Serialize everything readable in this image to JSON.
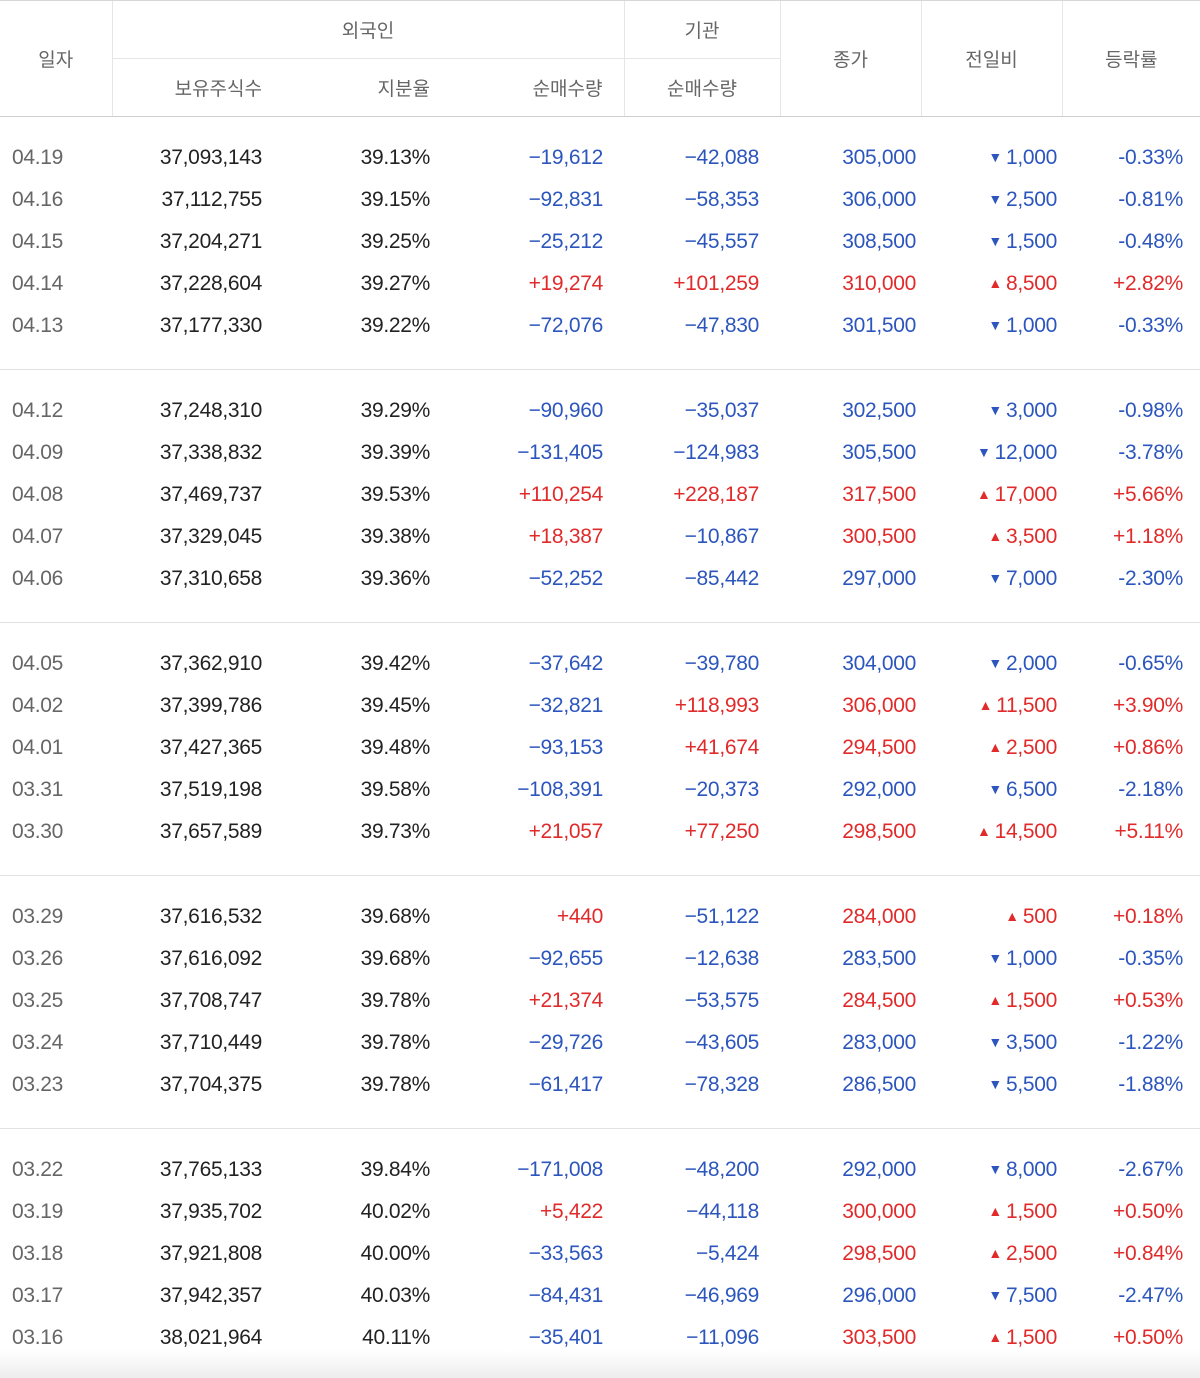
{
  "header": {
    "date": "일자",
    "foreign": "외국인",
    "institution": "기관",
    "close": "종가",
    "change": "전일비",
    "rate": "등락률",
    "holdings": "보유주식수",
    "share_ratio": "지분율",
    "foreign_net": "순매수량",
    "inst_net": "순매수량"
  },
  "colors": {
    "up": "#e12b2b",
    "down": "#2c56bd"
  },
  "icons": {
    "up": "triangle-up-icon",
    "down": "triangle-down-icon"
  },
  "groups": [
    [
      {
        "date": "04.19",
        "hold": "37,093,143",
        "ratio": "39.13%",
        "fnet": "−19,612",
        "inet": "−42,088",
        "close": "305,000",
        "chg": "1,000",
        "rate": "-0.33%",
        "fdir": "down",
        "idir": "down",
        "dir": "down"
      },
      {
        "date": "04.16",
        "hold": "37,112,755",
        "ratio": "39.15%",
        "fnet": "−92,831",
        "inet": "−58,353",
        "close": "306,000",
        "chg": "2,500",
        "rate": "-0.81%",
        "fdir": "down",
        "idir": "down",
        "dir": "down"
      },
      {
        "date": "04.15",
        "hold": "37,204,271",
        "ratio": "39.25%",
        "fnet": "−25,212",
        "inet": "−45,557",
        "close": "308,500",
        "chg": "1,500",
        "rate": "-0.48%",
        "fdir": "down",
        "idir": "down",
        "dir": "down"
      },
      {
        "date": "04.14",
        "hold": "37,228,604",
        "ratio": "39.27%",
        "fnet": "+19,274",
        "inet": "+101,259",
        "close": "310,000",
        "chg": "8,500",
        "rate": "+2.82%",
        "fdir": "up",
        "idir": "up",
        "dir": "up"
      },
      {
        "date": "04.13",
        "hold": "37,177,330",
        "ratio": "39.22%",
        "fnet": "−72,076",
        "inet": "−47,830",
        "close": "301,500",
        "chg": "1,000",
        "rate": "-0.33%",
        "fdir": "down",
        "idir": "down",
        "dir": "down"
      }
    ],
    [
      {
        "date": "04.12",
        "hold": "37,248,310",
        "ratio": "39.29%",
        "fnet": "−90,960",
        "inet": "−35,037",
        "close": "302,500",
        "chg": "3,000",
        "rate": "-0.98%",
        "fdir": "down",
        "idir": "down",
        "dir": "down"
      },
      {
        "date": "04.09",
        "hold": "37,338,832",
        "ratio": "39.39%",
        "fnet": "−131,405",
        "inet": "−124,983",
        "close": "305,500",
        "chg": "12,000",
        "rate": "-3.78%",
        "fdir": "down",
        "idir": "down",
        "dir": "down"
      },
      {
        "date": "04.08",
        "hold": "37,469,737",
        "ratio": "39.53%",
        "fnet": "+110,254",
        "inet": "+228,187",
        "close": "317,500",
        "chg": "17,000",
        "rate": "+5.66%",
        "fdir": "up",
        "idir": "up",
        "dir": "up"
      },
      {
        "date": "04.07",
        "hold": "37,329,045",
        "ratio": "39.38%",
        "fnet": "+18,387",
        "inet": "−10,867",
        "close": "300,500",
        "chg": "3,500",
        "rate": "+1.18%",
        "fdir": "up",
        "idir": "down",
        "dir": "up"
      },
      {
        "date": "04.06",
        "hold": "37,310,658",
        "ratio": "39.36%",
        "fnet": "−52,252",
        "inet": "−85,442",
        "close": "297,000",
        "chg": "7,000",
        "rate": "-2.30%",
        "fdir": "down",
        "idir": "down",
        "dir": "down"
      }
    ],
    [
      {
        "date": "04.05",
        "hold": "37,362,910",
        "ratio": "39.42%",
        "fnet": "−37,642",
        "inet": "−39,780",
        "close": "304,000",
        "chg": "2,000",
        "rate": "-0.65%",
        "fdir": "down",
        "idir": "down",
        "dir": "down"
      },
      {
        "date": "04.02",
        "hold": "37,399,786",
        "ratio": "39.45%",
        "fnet": "−32,821",
        "inet": "+118,993",
        "close": "306,000",
        "chg": "11,500",
        "rate": "+3.90%",
        "fdir": "down",
        "idir": "up",
        "dir": "up"
      },
      {
        "date": "04.01",
        "hold": "37,427,365",
        "ratio": "39.48%",
        "fnet": "−93,153",
        "inet": "+41,674",
        "close": "294,500",
        "chg": "2,500",
        "rate": "+0.86%",
        "fdir": "down",
        "idir": "up",
        "dir": "up"
      },
      {
        "date": "03.31",
        "hold": "37,519,198",
        "ratio": "39.58%",
        "fnet": "−108,391",
        "inet": "−20,373",
        "close": "292,000",
        "chg": "6,500",
        "rate": "-2.18%",
        "fdir": "down",
        "idir": "down",
        "dir": "down"
      },
      {
        "date": "03.30",
        "hold": "37,657,589",
        "ratio": "39.73%",
        "fnet": "+21,057",
        "inet": "+77,250",
        "close": "298,500",
        "chg": "14,500",
        "rate": "+5.11%",
        "fdir": "up",
        "idir": "up",
        "dir": "up"
      }
    ],
    [
      {
        "date": "03.29",
        "hold": "37,616,532",
        "ratio": "39.68%",
        "fnet": "+440",
        "inet": "−51,122",
        "close": "284,000",
        "chg": "500",
        "rate": "+0.18%",
        "fdir": "up",
        "idir": "down",
        "dir": "up"
      },
      {
        "date": "03.26",
        "hold": "37,616,092",
        "ratio": "39.68%",
        "fnet": "−92,655",
        "inet": "−12,638",
        "close": "283,500",
        "chg": "1,000",
        "rate": "-0.35%",
        "fdir": "down",
        "idir": "down",
        "dir": "down"
      },
      {
        "date": "03.25",
        "hold": "37,708,747",
        "ratio": "39.78%",
        "fnet": "+21,374",
        "inet": "−53,575",
        "close": "284,500",
        "chg": "1,500",
        "rate": "+0.53%",
        "fdir": "up",
        "idir": "down",
        "dir": "up"
      },
      {
        "date": "03.24",
        "hold": "37,710,449",
        "ratio": "39.78%",
        "fnet": "−29,726",
        "inet": "−43,605",
        "close": "283,000",
        "chg": "3,500",
        "rate": "-1.22%",
        "fdir": "down",
        "idir": "down",
        "dir": "down"
      },
      {
        "date": "03.23",
        "hold": "37,704,375",
        "ratio": "39.78%",
        "fnet": "−61,417",
        "inet": "−78,328",
        "close": "286,500",
        "chg": "5,500",
        "rate": "-1.88%",
        "fdir": "down",
        "idir": "down",
        "dir": "down"
      }
    ],
    [
      {
        "date": "03.22",
        "hold": "37,765,133",
        "ratio": "39.84%",
        "fnet": "−171,008",
        "inet": "−48,200",
        "close": "292,000",
        "chg": "8,000",
        "rate": "-2.67%",
        "fdir": "down",
        "idir": "down",
        "dir": "down"
      },
      {
        "date": "03.19",
        "hold": "37,935,702",
        "ratio": "40.02%",
        "fnet": "+5,422",
        "inet": "−44,118",
        "close": "300,000",
        "chg": "1,500",
        "rate": "+0.50%",
        "fdir": "up",
        "idir": "down",
        "dir": "up"
      },
      {
        "date": "03.18",
        "hold": "37,921,808",
        "ratio": "40.00%",
        "fnet": "−33,563",
        "inet": "−5,424",
        "close": "298,500",
        "chg": "2,500",
        "rate": "+0.84%",
        "fdir": "down",
        "idir": "down",
        "dir": "up"
      },
      {
        "date": "03.17",
        "hold": "37,942,357",
        "ratio": "40.03%",
        "fnet": "−84,431",
        "inet": "−46,969",
        "close": "296,000",
        "chg": "7,500",
        "rate": "-2.47%",
        "fdir": "down",
        "idir": "down",
        "dir": "down"
      },
      {
        "date": "03.16",
        "hold": "38,021,964",
        "ratio": "40.11%",
        "fnet": "−35,401",
        "inet": "−11,096",
        "close": "303,500",
        "chg": "1,500",
        "rate": "+0.50%",
        "fdir": "down",
        "idir": "down",
        "dir": "up"
      }
    ]
  ]
}
